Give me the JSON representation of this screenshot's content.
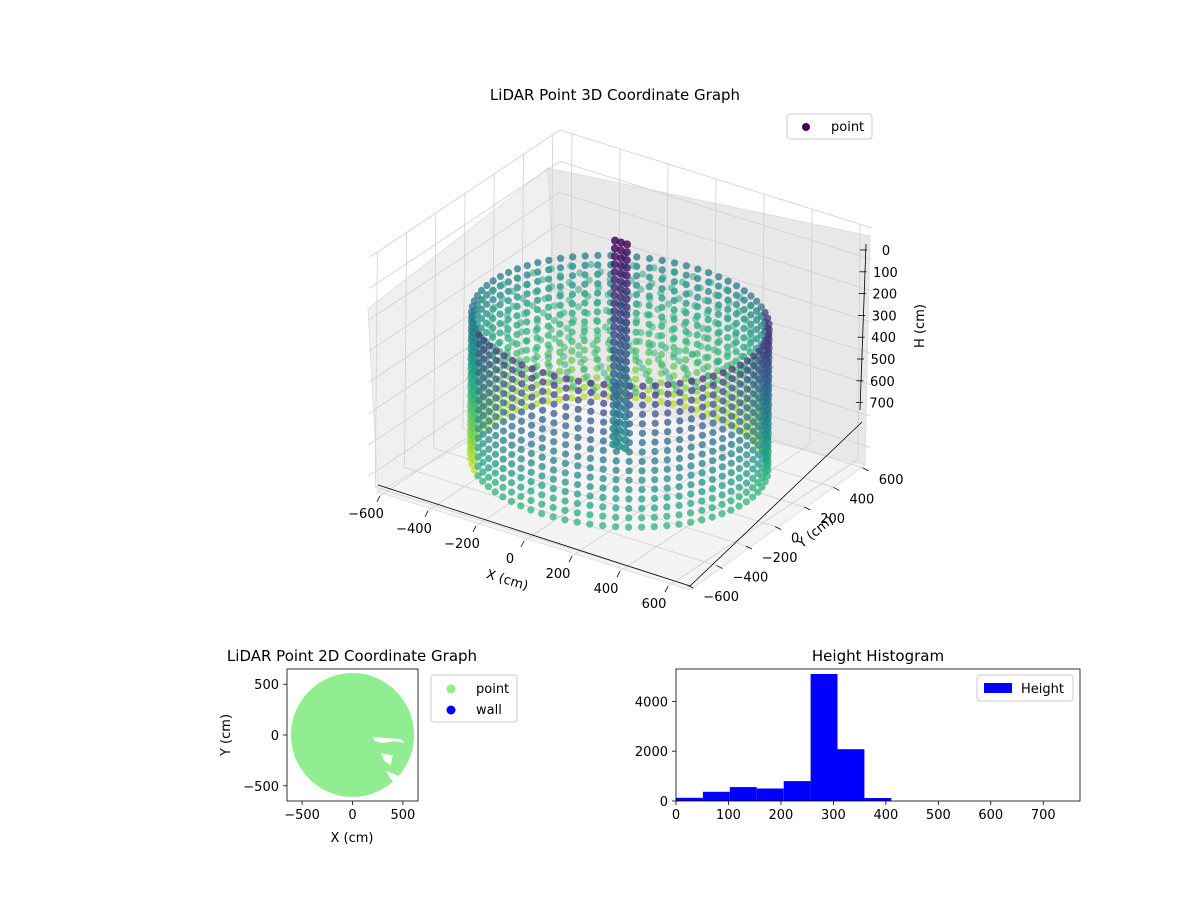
{
  "chart_data": [
    {
      "type": "scatter",
      "projection": "3d",
      "title": "LiDAR Point 3D Coordinate Graph",
      "xlabel": "X (cm)",
      "ylabel": "Y (cm)",
      "zlabel": "H (cm)",
      "xlim": [
        -650,
        650
      ],
      "ylim": [
        -650,
        650
      ],
      "zlim": [
        0,
        750
      ],
      "z_inverted": true,
      "x_ticks": [
        "−600",
        "−400",
        "−200",
        "0",
        "200",
        "400",
        "600"
      ],
      "y_ticks": [
        "−600",
        "−400",
        "−200",
        "0",
        "200",
        "400",
        "600"
      ],
      "z_ticks": [
        "0",
        "100",
        "200",
        "300",
        "400",
        "500",
        "600",
        "700"
      ],
      "grid": true,
      "colormap": "viridis",
      "legend": {
        "placement": "top-right",
        "entries": [
          {
            "label": "point",
            "color": "#440154"
          }
        ]
      },
      "series": [
        {
          "name": "point",
          "shape": "ring",
          "ring_radius_cm": 530,
          "ring_height_range_cm": [
            250,
            700
          ],
          "central_column": {
            "x": 0,
            "y": 0,
            "height_range_cm": [
              0,
              650
            ]
          }
        }
      ]
    },
    {
      "type": "scatter",
      "title": "LiDAR Point 2D Coordinate Graph",
      "xlabel": "X (cm)",
      "ylabel": "Y (cm)",
      "xlim": [
        -650,
        650
      ],
      "ylim": [
        -650,
        650
      ],
      "x_ticks": [
        "−500",
        "0",
        "500"
      ],
      "y_ticks": [
        "−500",
        "0",
        "500"
      ],
      "legend": {
        "placement": "outside-right",
        "entries": [
          {
            "label": "point",
            "color": "#90ee90"
          },
          {
            "label": "wall",
            "color": "#0000ff"
          }
        ]
      },
      "series": [
        {
          "name": "point",
          "color": "#90ee90",
          "shape": "filled-disc",
          "radius_cm": 610
        },
        {
          "name": "wall",
          "color": "#0000ff",
          "points": []
        }
      ]
    },
    {
      "type": "bar",
      "subtype": "histogram",
      "title": "Height Histogram",
      "xlabel": "",
      "ylabel": "",
      "xlim": [
        0,
        770
      ],
      "ylim": [
        0,
        5300
      ],
      "x_ticks": [
        "0",
        "100",
        "200",
        "300",
        "400",
        "500",
        "600",
        "700"
      ],
      "y_ticks": [
        "0",
        "2000",
        "4000"
      ],
      "legend": {
        "placement": "top-right",
        "entries": [
          {
            "label": "Height",
            "color": "#0000ff"
          }
        ]
      },
      "series": [
        {
          "name": "Height",
          "color": "#0000ff",
          "bin_edges": [
            0,
            51.3,
            102.6,
            153.9,
            205.2,
            256.5,
            307.8,
            359.1,
            410.4,
            461.7,
            513.0,
            564.3,
            615.6,
            666.9,
            718.2,
            769.5
          ],
          "values": [
            130,
            370,
            560,
            500,
            800,
            5100,
            2080,
            120,
            5,
            3,
            2,
            2,
            1,
            1,
            1
          ]
        }
      ]
    }
  ]
}
